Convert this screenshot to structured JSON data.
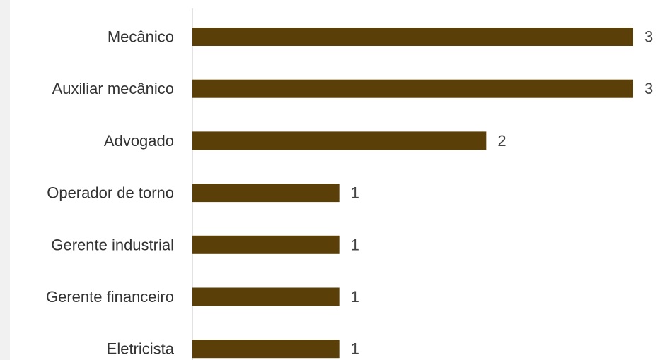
{
  "chart_data": {
    "type": "bar",
    "orientation": "horizontal",
    "categories": [
      "Mecânico",
      "Auxiliar mecânico",
      "Advogado",
      "Operador de torno",
      "Gerente industrial",
      "Gerente financeiro",
      "Eletricista"
    ],
    "values": [
      3,
      3,
      2,
      1,
      1,
      1,
      1
    ],
    "data_labels": [
      "3",
      "3",
      "2",
      "1",
      "1",
      "1",
      "1"
    ],
    "title": "",
    "xlabel": "",
    "ylabel": "",
    "xlim": [
      0,
      3
    ],
    "grid": false,
    "legend": "none",
    "bar_color": "#5a4008",
    "axis_color": "#d9d9d9"
  }
}
